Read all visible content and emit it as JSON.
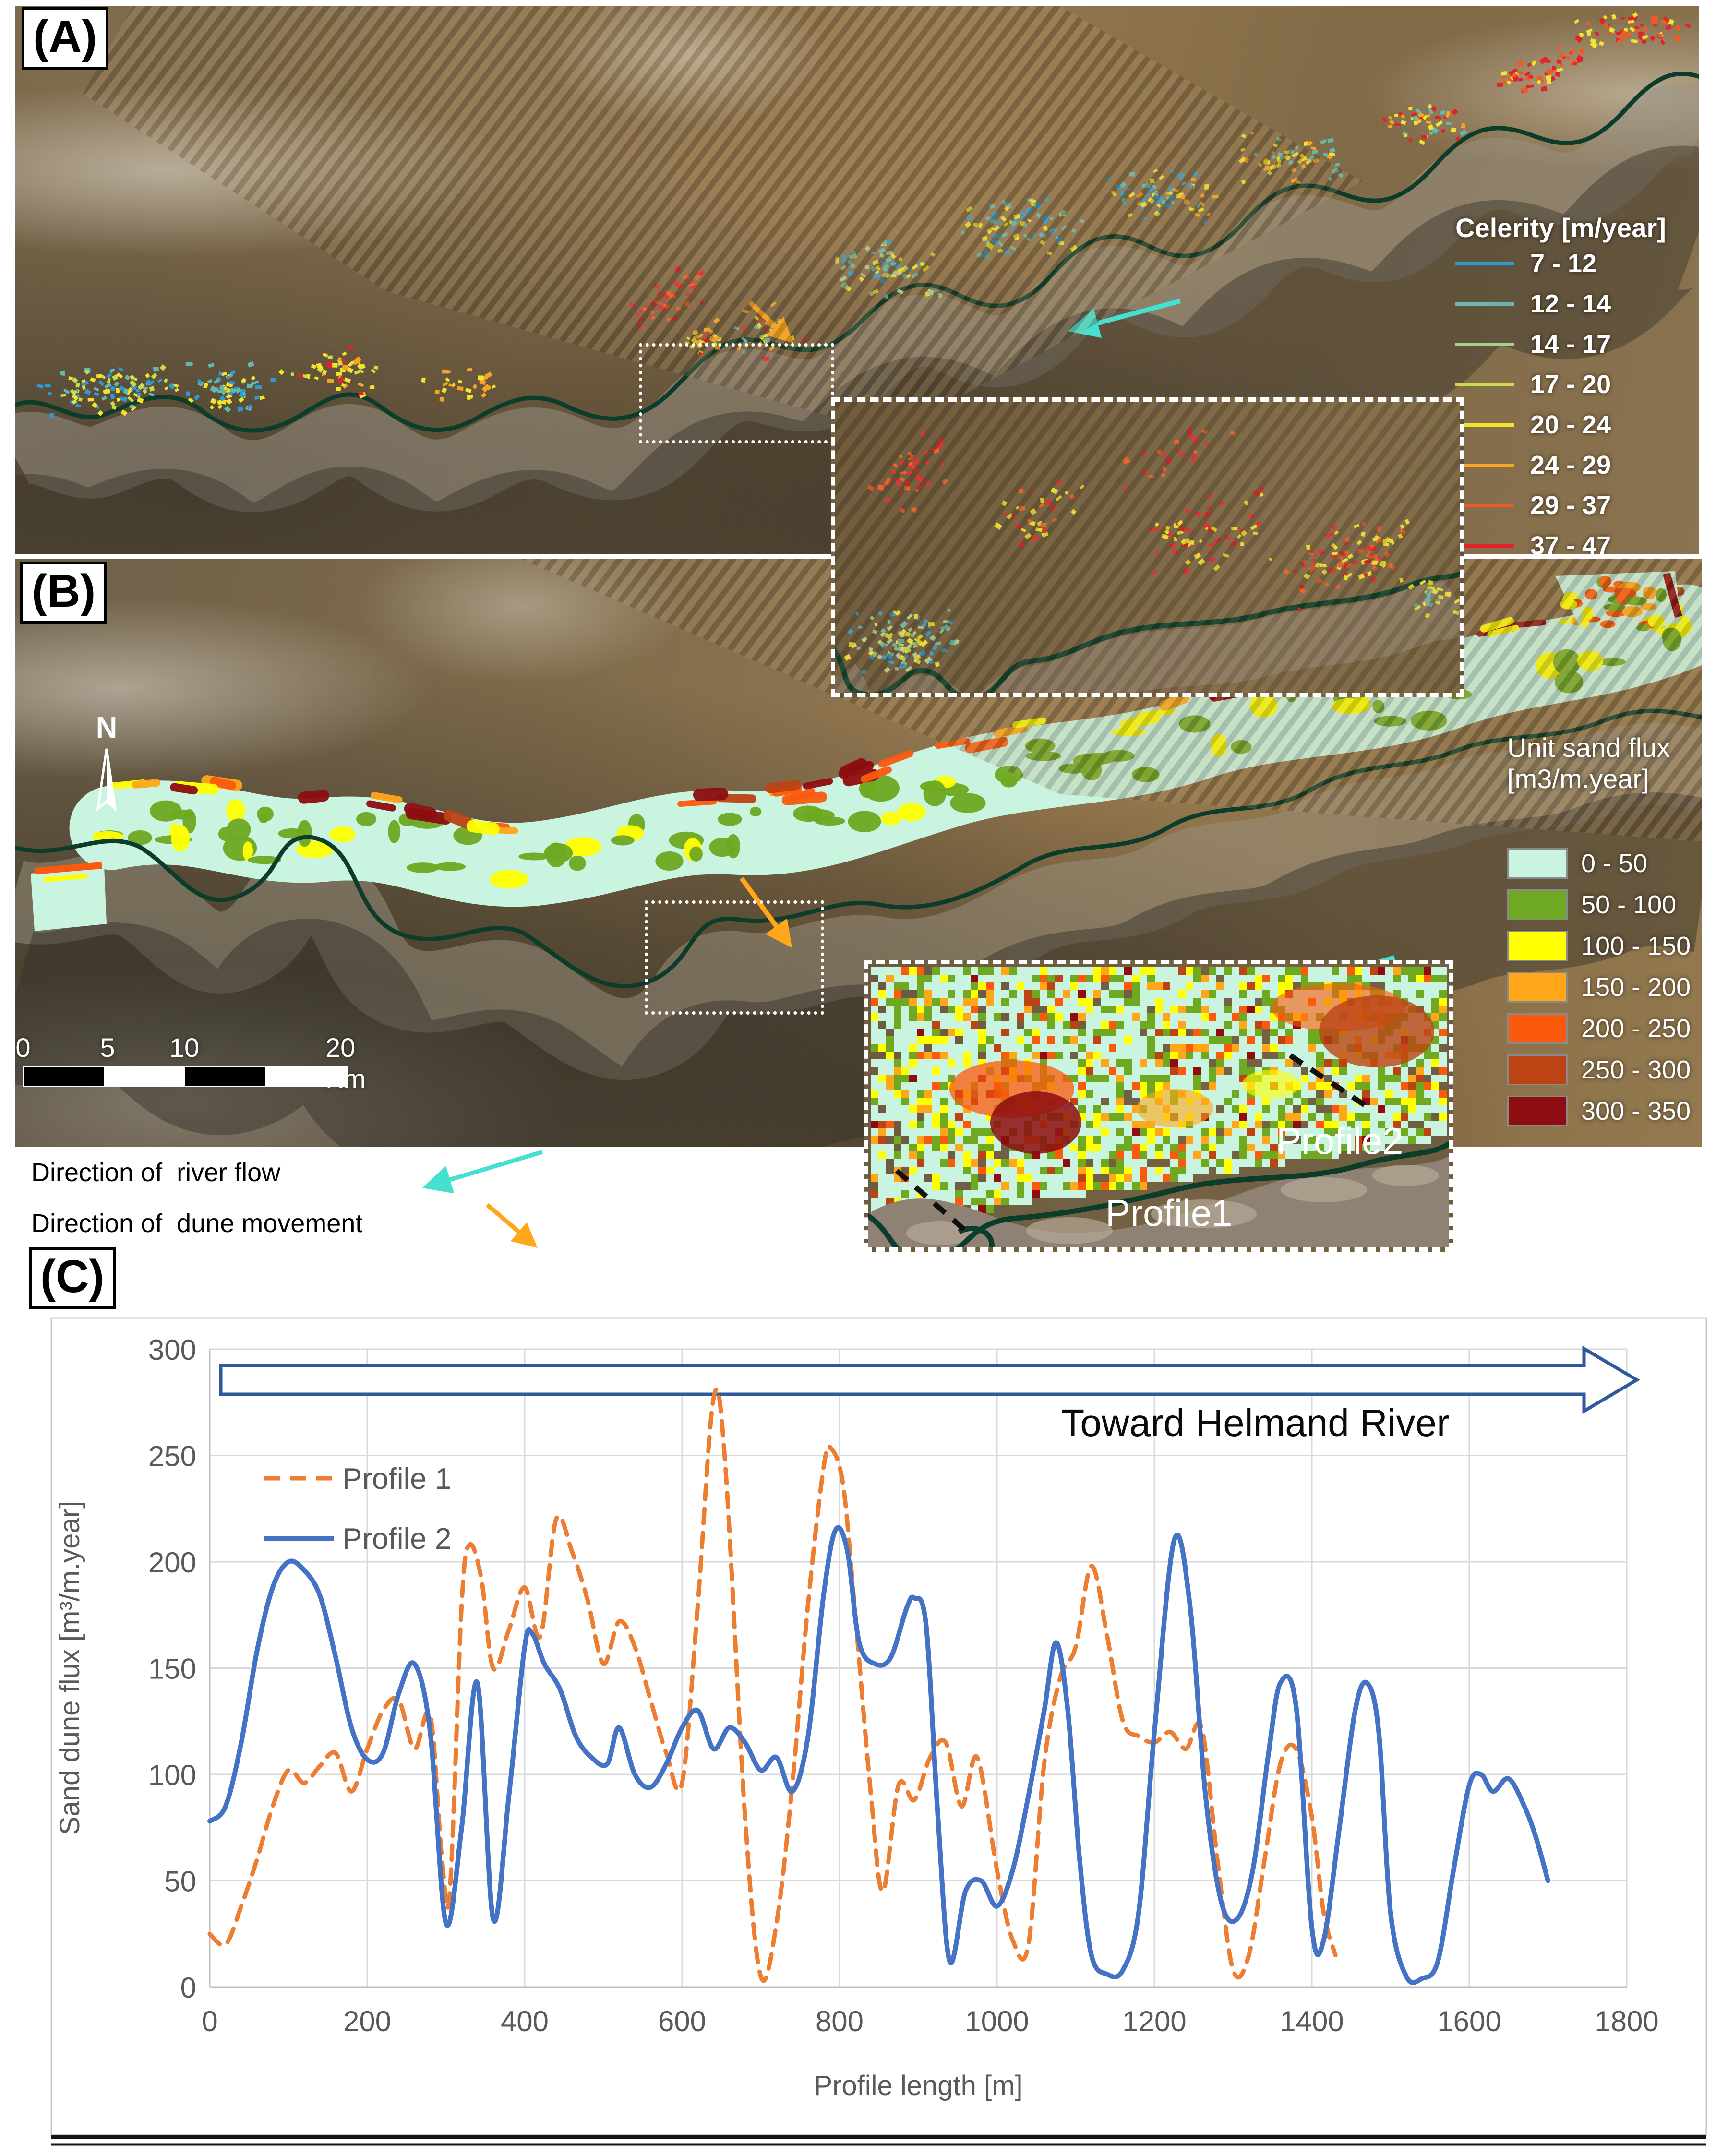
{
  "figure": {
    "panel_a_label": "(A)",
    "panel_b_label": "(B)",
    "panel_c_label": "(C)",
    "north_label": "N"
  },
  "celerity_legend": {
    "title": "Celerity [m/year]",
    "items": [
      {
        "range": "7 - 12",
        "color": "#2E9AD0"
      },
      {
        "range": "12 - 14",
        "color": "#66B8AE"
      },
      {
        "range": "14 - 17",
        "color": "#A8D08D"
      },
      {
        "range": "17 - 20",
        "color": "#CBDB49"
      },
      {
        "range": "20 - 24",
        "color": "#F2E32B"
      },
      {
        "range": "24 - 29",
        "color": "#F6A522"
      },
      {
        "range": "29 - 37",
        "color": "#F15A25"
      },
      {
        "range": "37 - 47",
        "color": "#E3222A"
      }
    ]
  },
  "flux_legend": {
    "title_line1": "Unit sand flux",
    "title_line2": "[m3/m.year]",
    "items": [
      {
        "range": "0 - 50",
        "color": "#C9F4DF"
      },
      {
        "range": "50 - 100",
        "color": "#6FA821"
      },
      {
        "range": "100 - 150",
        "color": "#FFFF00"
      },
      {
        "range": "150 - 200",
        "color": "#FFA719"
      },
      {
        "range": "200 - 250",
        "color": "#FB5A0D"
      },
      {
        "range": "250 - 300",
        "color": "#BC4414"
      },
      {
        "range": "300 - 350",
        "color": "#8D0D10"
      }
    ]
  },
  "scale_bar": {
    "labels": [
      "0",
      "5",
      "10",
      "20 Km"
    ]
  },
  "map_annotations": {
    "inset_b_profile1": "Profile1",
    "inset_b_profile2": "Profile2",
    "river_flow_label": "Direction of  river flow",
    "dune_movement_label": "Direction of  dune movement",
    "river_arrow_color": "#45E0D0",
    "dune_arrow_color": "#FFA719",
    "river_color": "#0C3D2B"
  },
  "chart_data": {
    "type": "line",
    "title": "",
    "xlabel": "Profile length [m]",
    "ylabel": "Sand dune flux [m³/m.year]",
    "annotation": "Toward Helmand River",
    "xlim": [
      0,
      1800
    ],
    "ylim": [
      0,
      300
    ],
    "xticks": [
      0,
      200,
      400,
      600,
      800,
      1000,
      1200,
      1400,
      1600,
      1800
    ],
    "yticks": [
      0,
      50,
      100,
      150,
      200,
      250,
      300
    ],
    "grid": true,
    "legend_position": "top-left-inside",
    "series": [
      {
        "name": "Profile 1",
        "color": "#ED7D31",
        "style": "dashed",
        "points": [
          [
            0,
            25
          ],
          [
            20,
            20
          ],
          [
            40,
            38
          ],
          [
            60,
            60
          ],
          [
            80,
            85
          ],
          [
            100,
            102
          ],
          [
            120,
            96
          ],
          [
            140,
            104
          ],
          [
            160,
            110
          ],
          [
            180,
            92
          ],
          [
            200,
            112
          ],
          [
            220,
            130
          ],
          [
            240,
            135
          ],
          [
            260,
            112
          ],
          [
            280,
            128
          ],
          [
            295,
            60
          ],
          [
            305,
            45
          ],
          [
            320,
            180
          ],
          [
            330,
            208
          ],
          [
            345,
            192
          ],
          [
            360,
            150
          ],
          [
            380,
            168
          ],
          [
            400,
            188
          ],
          [
            420,
            165
          ],
          [
            440,
            220
          ],
          [
            460,
            205
          ],
          [
            480,
            182
          ],
          [
            500,
            152
          ],
          [
            520,
            172
          ],
          [
            540,
            160
          ],
          [
            560,
            135
          ],
          [
            580,
            110
          ],
          [
            600,
            96
          ],
          [
            620,
            180
          ],
          [
            640,
            277
          ],
          [
            655,
            245
          ],
          [
            680,
            80
          ],
          [
            700,
            5
          ],
          [
            720,
            30
          ],
          [
            740,
            95
          ],
          [
            760,
            180
          ],
          [
            780,
            245
          ],
          [
            790,
            253
          ],
          [
            805,
            235
          ],
          [
            820,
            175
          ],
          [
            840,
            90
          ],
          [
            855,
            45
          ],
          [
            875,
            95
          ],
          [
            895,
            88
          ],
          [
            915,
            108
          ],
          [
            935,
            115
          ],
          [
            955,
            85
          ],
          [
            975,
            108
          ],
          [
            1000,
            55
          ],
          [
            1020,
            22
          ],
          [
            1040,
            20
          ],
          [
            1060,
            105
          ],
          [
            1080,
            145
          ],
          [
            1100,
            160
          ],
          [
            1120,
            198
          ],
          [
            1140,
            165
          ],
          [
            1160,
            125
          ],
          [
            1180,
            118
          ],
          [
            1200,
            115
          ],
          [
            1220,
            120
          ],
          [
            1240,
            112
          ],
          [
            1260,
            122
          ],
          [
            1280,
            60
          ],
          [
            1300,
            8
          ],
          [
            1320,
            15
          ],
          [
            1340,
            60
          ],
          [
            1360,
            105
          ],
          [
            1380,
            112
          ],
          [
            1400,
            80
          ],
          [
            1415,
            35
          ],
          [
            1430,
            15
          ]
        ]
      },
      {
        "name": "Profile 2",
        "color": "#4472C4",
        "style": "solid",
        "points": [
          [
            0,
            78
          ],
          [
            20,
            85
          ],
          [
            40,
            115
          ],
          [
            60,
            158
          ],
          [
            80,
            188
          ],
          [
            100,
            200
          ],
          [
            120,
            196
          ],
          [
            140,
            184
          ],
          [
            160,
            155
          ],
          [
            180,
            122
          ],
          [
            200,
            107
          ],
          [
            220,
            110
          ],
          [
            240,
            138
          ],
          [
            260,
            152
          ],
          [
            280,
            120
          ],
          [
            300,
            30
          ],
          [
            320,
            75
          ],
          [
            340,
            143
          ],
          [
            360,
            32
          ],
          [
            380,
            90
          ],
          [
            400,
            160
          ],
          [
            410,
            166
          ],
          [
            425,
            152
          ],
          [
            445,
            140
          ],
          [
            465,
            118
          ],
          [
            485,
            108
          ],
          [
            505,
            105
          ],
          [
            520,
            122
          ],
          [
            540,
            100
          ],
          [
            560,
            94
          ],
          [
            580,
            105
          ],
          [
            600,
            122
          ],
          [
            620,
            130
          ],
          [
            640,
            112
          ],
          [
            660,
            122
          ],
          [
            680,
            115
          ],
          [
            700,
            102
          ],
          [
            720,
            108
          ],
          [
            740,
            92
          ],
          [
            760,
            118
          ],
          [
            780,
            185
          ],
          [
            795,
            215
          ],
          [
            810,
            205
          ],
          [
            825,
            162
          ],
          [
            845,
            152
          ],
          [
            865,
            155
          ],
          [
            885,
            178
          ],
          [
            895,
            183
          ],
          [
            910,
            170
          ],
          [
            925,
            80
          ],
          [
            940,
            12
          ],
          [
            960,
            45
          ],
          [
            980,
            50
          ],
          [
            1000,
            38
          ],
          [
            1020,
            55
          ],
          [
            1040,
            90
          ],
          [
            1060,
            130
          ],
          [
            1075,
            162
          ],
          [
            1090,
            130
          ],
          [
            1105,
            60
          ],
          [
            1120,
            15
          ],
          [
            1140,
            6
          ],
          [
            1160,
            8
          ],
          [
            1180,
            35
          ],
          [
            1200,
            120
          ],
          [
            1225,
            210
          ],
          [
            1245,
            180
          ],
          [
            1265,
            90
          ],
          [
            1285,
            40
          ],
          [
            1305,
            32
          ],
          [
            1325,
            55
          ],
          [
            1345,
            110
          ],
          [
            1360,
            143
          ],
          [
            1380,
            132
          ],
          [
            1400,
            28
          ],
          [
            1415,
            22
          ],
          [
            1435,
            75
          ],
          [
            1455,
            130
          ],
          [
            1470,
            143
          ],
          [
            1485,
            120
          ],
          [
            1500,
            35
          ],
          [
            1520,
            5
          ],
          [
            1540,
            4
          ],
          [
            1560,
            12
          ],
          [
            1580,
            55
          ],
          [
            1600,
            95
          ],
          [
            1615,
            100
          ],
          [
            1630,
            92
          ],
          [
            1650,
            98
          ],
          [
            1670,
            85
          ],
          [
            1685,
            70
          ],
          [
            1700,
            50
          ]
        ]
      }
    ]
  }
}
